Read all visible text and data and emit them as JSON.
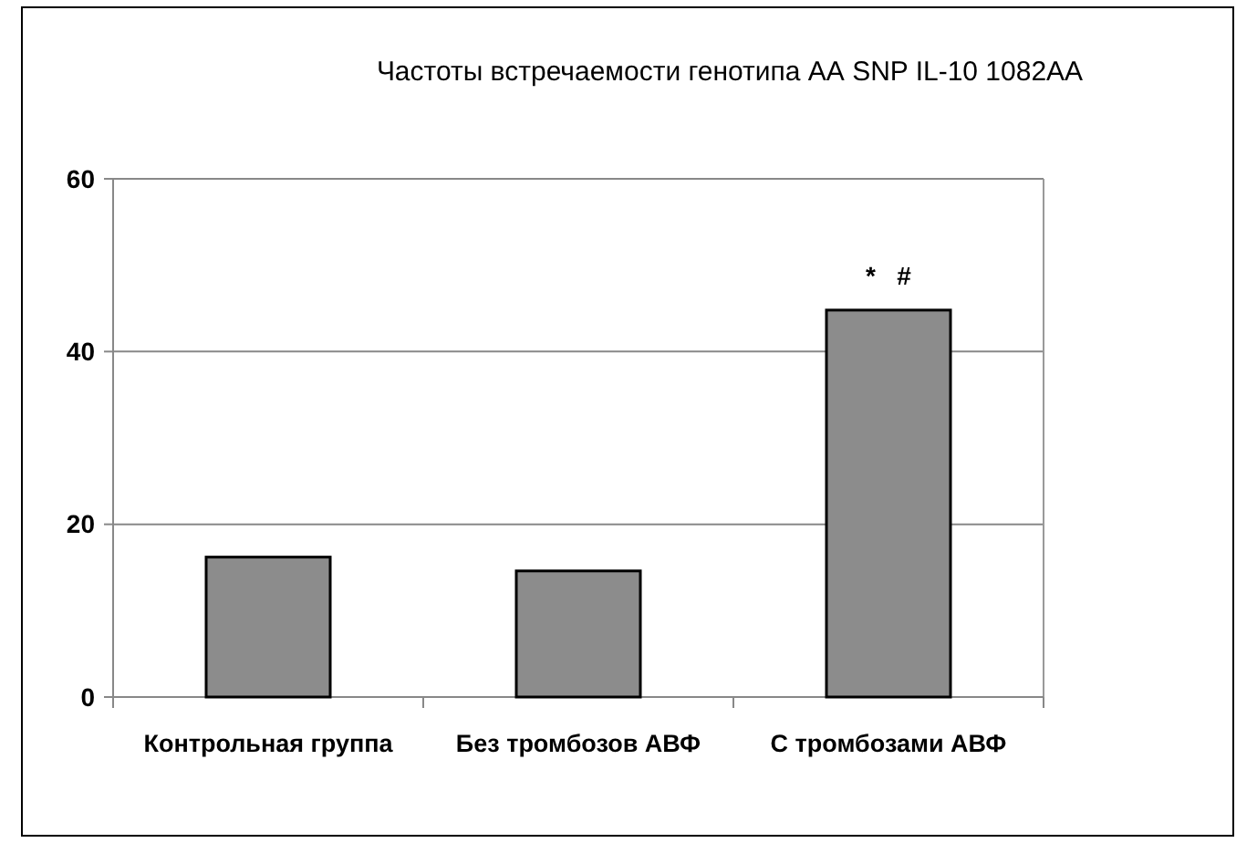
{
  "chart_data": {
    "type": "bar",
    "title": "Частоты встречаемости генотипа АА SNP IL-10 1082AA",
    "categories": [
      "Контрольная группа",
      "Без тромбозов АВФ",
      "С тромбозами АВФ"
    ],
    "values": [
      16.2,
      14.6,
      44.8
    ],
    "color": "#8c8c8c",
    "ylim": [
      0,
      60
    ],
    "yticks": [
      0,
      20,
      40,
      60
    ],
    "grid": "y",
    "annotations": [
      {
        "text": "*   #",
        "x": "С тромбозами АВФ",
        "y": 44.8
      }
    ]
  }
}
